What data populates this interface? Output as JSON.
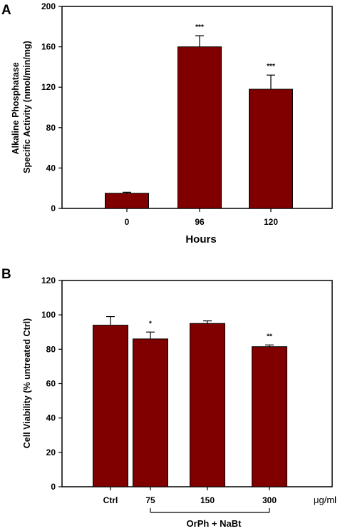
{
  "chart_data": [
    {
      "panel": "A",
      "type": "bar",
      "categories": [
        "0",
        "96",
        "120"
      ],
      "values": [
        15,
        160,
        118
      ],
      "errors": [
        1,
        11,
        14
      ],
      "significance": [
        "",
        "***",
        "***"
      ],
      "xlabel": "Hours",
      "ylabel_lines": [
        "Alkaline Phosphatase",
        "Specific Activity (nmol/min/mg)"
      ],
      "ylim": [
        0,
        200
      ],
      "yticks": [
        0,
        40,
        80,
        120,
        160,
        200
      ],
      "bar_color": "#800000",
      "grid": false
    },
    {
      "panel": "B",
      "type": "bar",
      "categories": [
        "Ctrl",
        "75",
        "150",
        "300"
      ],
      "values": [
        94,
        86,
        95,
        81.5
      ],
      "errors": [
        5,
        4,
        1.5,
        1
      ],
      "significance": [
        "",
        "*",
        "",
        "**"
      ],
      "ylabel": "Cell Viability (% untreated Ctrl)",
      "unit_label": "μg/ml",
      "group_label": "OrPh + NaBt",
      "ylim": [
        0,
        120
      ],
      "yticks": [
        0,
        20,
        40,
        60,
        80,
        100,
        120
      ],
      "bar_color": "#800000",
      "grid": false
    }
  ]
}
